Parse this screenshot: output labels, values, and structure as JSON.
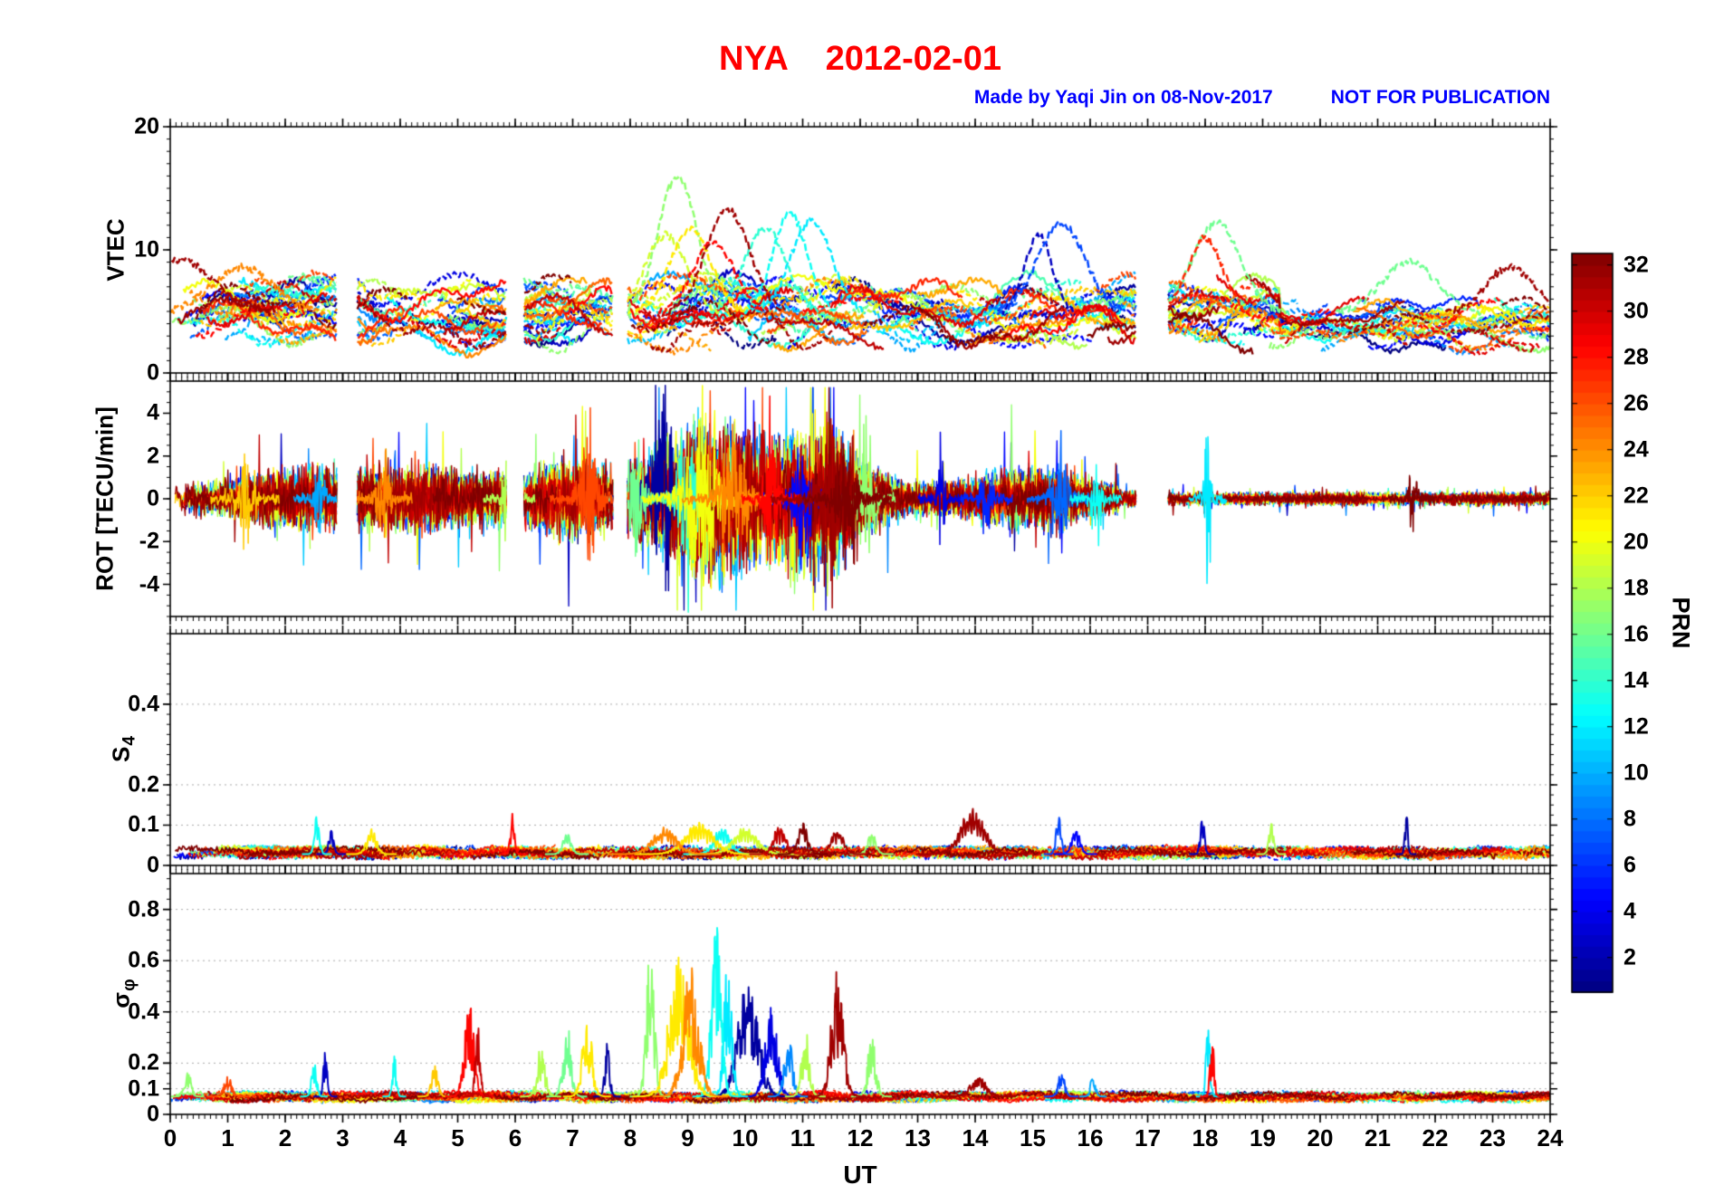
{
  "header": {
    "title": "NYA    2012-02-01",
    "title_color": "#ff0000",
    "credit": "Made by Yaqi Jin on 08-Nov-2017",
    "notice": "NOT FOR PUBLICATION",
    "credit_color": "#0000ff"
  },
  "chart_data": {
    "type": "line",
    "station": "NYA",
    "date": "2012-02-01",
    "axis_color": "#000000",
    "x": {
      "label": "UT",
      "lim": [
        0,
        24
      ],
      "major_ticks": [
        0,
        1,
        2,
        3,
        4,
        5,
        6,
        7,
        8,
        9,
        10,
        11,
        12,
        13,
        14,
        15,
        16,
        17,
        18,
        19,
        20,
        21,
        22,
        23,
        24
      ],
      "minor_step": 0.1
    },
    "colorbar": {
      "label": "PRN",
      "min": 1,
      "max": 32,
      "ticks": [
        2,
        4,
        6,
        8,
        10,
        12,
        14,
        16,
        18,
        20,
        22,
        24,
        26,
        28,
        30,
        32
      ],
      "colormap": "jet"
    },
    "data_gaps": [
      [
        2.9,
        3.25
      ],
      [
        5.85,
        6.15
      ],
      [
        7.7,
        7.95
      ],
      [
        16.8,
        17.35
      ]
    ],
    "panels": [
      {
        "key": "vtec",
        "ylabel": "VTEC",
        "ylabel_sub": "",
        "ylim": [
          0,
          20
        ],
        "yticks": [
          0,
          10,
          20
        ],
        "yminor": 1,
        "band": {
          "min": 2,
          "max": 9
        },
        "peaks": [
          {
            "t": 0.15,
            "prn": 31,
            "value": 9.2,
            "width": 0.5
          },
          {
            "t": 1.25,
            "prn": 24,
            "value": 8.6,
            "width": 0.45
          },
          {
            "t": 8.62,
            "prn": 19,
            "value": 11.2,
            "width": 0.3
          },
          {
            "t": 8.82,
            "prn": 17,
            "value": 16.0,
            "width": 0.28
          },
          {
            "t": 9.05,
            "prn": 21,
            "value": 11.6,
            "width": 0.3
          },
          {
            "t": 9.45,
            "prn": 28,
            "value": 10.6,
            "width": 0.3
          },
          {
            "t": 9.7,
            "prn": 31,
            "value": 13.2,
            "width": 0.32
          },
          {
            "t": 10.35,
            "prn": 14,
            "value": 11.8,
            "width": 0.3
          },
          {
            "t": 10.78,
            "prn": 13,
            "value": 12.9,
            "width": 0.25
          },
          {
            "t": 11.15,
            "prn": 12,
            "value": 12.4,
            "width": 0.3
          },
          {
            "t": 15.1,
            "prn": 3,
            "value": 11.2,
            "width": 0.2
          },
          {
            "t": 15.5,
            "prn": 7,
            "value": 12.1,
            "width": 0.35
          },
          {
            "t": 18.0,
            "prn": 27,
            "value": 11.0,
            "width": 0.25
          },
          {
            "t": 18.2,
            "prn": 16,
            "value": 12.2,
            "width": 0.35
          },
          {
            "t": 21.55,
            "prn": 16,
            "value": 9.0,
            "width": 0.4
          },
          {
            "t": 23.3,
            "prn": 31,
            "value": 8.6,
            "width": 0.35
          }
        ]
      },
      {
        "key": "rot",
        "ylabel": "ROT [TECU/min]",
        "ylabel_sub": "",
        "ylim": [
          -5.5,
          5.5
        ],
        "yticks": [
          4,
          2,
          0,
          -2,
          -4
        ],
        "yminor": 0.5,
        "quiet": 0.3,
        "activity": [
          {
            "t": 2.0,
            "amp": 0.3,
            "width": 1.5
          },
          {
            "t": 4.3,
            "amp": 0.5,
            "width": 2.0
          },
          {
            "t": 6.9,
            "amp": 0.6,
            "width": 0.8
          },
          {
            "t": 9.4,
            "amp": 1.7,
            "width": 1.3
          },
          {
            "t": 11.4,
            "amp": 1.4,
            "width": 0.9
          },
          {
            "t": 14.9,
            "amp": 0.5,
            "width": 1.2
          }
        ],
        "bursts": [
          {
            "t": 1.3,
            "prn": 22,
            "amp": 2.0,
            "width": 0.15
          },
          {
            "t": 2.6,
            "prn": 10,
            "amp": 1.9,
            "width": 0.1
          },
          {
            "t": 3.7,
            "prn": 24,
            "amp": 2.3,
            "width": 0.12
          },
          {
            "t": 5.9,
            "prn": 18,
            "amp": 4.4,
            "width": 0.1
          },
          {
            "t": 7.3,
            "prn": 26,
            "amp": 2.7,
            "width": 0.18
          },
          {
            "t": 8.1,
            "prn": 16,
            "amp": 3.1,
            "width": 0.15
          },
          {
            "t": 8.55,
            "prn": 2,
            "amp": 4.5,
            "width": 0.25
          },
          {
            "t": 9.0,
            "prn": 14,
            "amp": 3.5,
            "width": 0.2
          },
          {
            "t": 9.25,
            "prn": 20,
            "amp": 4.6,
            "width": 0.3
          },
          {
            "t": 9.8,
            "prn": 24,
            "amp": 3.5,
            "width": 0.25
          },
          {
            "t": 10.45,
            "prn": 28,
            "amp": 4.4,
            "width": 0.12
          },
          {
            "t": 11.0,
            "prn": 5,
            "amp": 3.4,
            "width": 0.2
          },
          {
            "t": 11.5,
            "prn": 31,
            "amp": 3.1,
            "width": 0.3
          },
          {
            "t": 11.75,
            "prn": 32,
            "amp": 2.6,
            "width": 0.2
          },
          {
            "t": 12.1,
            "prn": 17,
            "amp": 3.7,
            "width": 0.12
          },
          {
            "t": 13.4,
            "prn": 4,
            "amp": 1.8,
            "width": 0.08
          },
          {
            "t": 14.2,
            "prn": 6,
            "amp": 2.1,
            "width": 0.1
          },
          {
            "t": 15.5,
            "prn": 8,
            "amp": 2.3,
            "width": 0.15
          },
          {
            "t": 16.1,
            "prn": 13,
            "amp": 1.8,
            "width": 0.1
          },
          {
            "t": 18.05,
            "prn": 12,
            "amp": 4.7,
            "width": 0.06
          },
          {
            "t": 21.6,
            "prn": 32,
            "amp": 1.5,
            "width": 0.08
          }
        ]
      },
      {
        "key": "s4",
        "ylabel": "S",
        "ylabel_sub": "4",
        "ylim": [
          0,
          0.575
        ],
        "yticks": [
          0,
          0.1,
          0.2,
          0.4
        ],
        "yminor": 0.025,
        "baseline": 0.03,
        "events": [
          {
            "t": 2.55,
            "prn": 13,
            "amp": 0.09,
            "width": 0.06
          },
          {
            "t": 2.8,
            "prn": 3,
            "amp": 0.06,
            "width": 0.06
          },
          {
            "t": 3.5,
            "prn": 21,
            "amp": 0.055,
            "width": 0.12
          },
          {
            "t": 5.95,
            "prn": 28,
            "amp": 0.09,
            "width": 0.05
          },
          {
            "t": 6.9,
            "prn": 16,
            "amp": 0.05,
            "width": 0.1
          },
          {
            "t": 8.6,
            "prn": 24,
            "amp": 0.06,
            "width": 0.3
          },
          {
            "t": 9.2,
            "prn": 21,
            "amp": 0.07,
            "width": 0.35
          },
          {
            "t": 9.6,
            "prn": 13,
            "amp": 0.06,
            "width": 0.2
          },
          {
            "t": 10.0,
            "prn": 19,
            "amp": 0.06,
            "width": 0.3
          },
          {
            "t": 10.6,
            "prn": 30,
            "amp": 0.065,
            "width": 0.15
          },
          {
            "t": 11.0,
            "prn": 32,
            "amp": 0.07,
            "width": 0.12
          },
          {
            "t": 11.6,
            "prn": 31,
            "amp": 0.06,
            "width": 0.15
          },
          {
            "t": 12.2,
            "prn": 17,
            "amp": 0.05,
            "width": 0.1
          },
          {
            "t": 13.95,
            "prn": 31,
            "amp": 0.1,
            "width": 0.3
          },
          {
            "t": 15.45,
            "prn": 7,
            "amp": 0.09,
            "width": 0.06
          },
          {
            "t": 15.75,
            "prn": 5,
            "amp": 0.06,
            "width": 0.1
          },
          {
            "t": 17.95,
            "prn": 3,
            "amp": 0.09,
            "width": 0.05
          },
          {
            "t": 19.15,
            "prn": 18,
            "amp": 0.07,
            "width": 0.06
          },
          {
            "t": 21.5,
            "prn": 2,
            "amp": 0.1,
            "width": 0.035
          }
        ]
      },
      {
        "key": "sigma_phi",
        "ylabel": "σ",
        "ylabel_sub": "φ",
        "ylim": [
          0,
          0.94
        ],
        "yticks": [
          0,
          0.1,
          0.2,
          0.4,
          0.6,
          0.8
        ],
        "yminor": 0.04,
        "baseline": 0.07,
        "events": [
          {
            "t": 0.3,
            "prn": 17,
            "amp": 0.12,
            "width": 0.08
          },
          {
            "t": 1.0,
            "prn": 26,
            "amp": 0.08,
            "width": 0.1
          },
          {
            "t": 2.5,
            "prn": 13,
            "amp": 0.16,
            "width": 0.06
          },
          {
            "t": 2.7,
            "prn": 3,
            "amp": 0.2,
            "width": 0.05
          },
          {
            "t": 3.9,
            "prn": 13,
            "amp": 0.16,
            "width": 0.05
          },
          {
            "t": 4.6,
            "prn": 22,
            "amp": 0.12,
            "width": 0.08
          },
          {
            "t": 5.2,
            "prn": 28,
            "amp": 0.37,
            "width": 0.12
          },
          {
            "t": 5.35,
            "prn": 30,
            "amp": 0.28,
            "width": 0.06
          },
          {
            "t": 6.45,
            "prn": 18,
            "amp": 0.2,
            "width": 0.1
          },
          {
            "t": 6.9,
            "prn": 16,
            "amp": 0.3,
            "width": 0.1
          },
          {
            "t": 7.25,
            "prn": 21,
            "amp": 0.32,
            "width": 0.12
          },
          {
            "t": 7.6,
            "prn": 2,
            "amp": 0.22,
            "width": 0.06
          },
          {
            "t": 8.35,
            "prn": 17,
            "amp": 0.6,
            "width": 0.1
          },
          {
            "t": 8.85,
            "prn": 21,
            "amp": 0.55,
            "width": 0.25
          },
          {
            "t": 9.05,
            "prn": 24,
            "amp": 0.52,
            "width": 0.2
          },
          {
            "t": 9.5,
            "prn": 13,
            "amp": 0.71,
            "width": 0.12
          },
          {
            "t": 9.7,
            "prn": 12,
            "amp": 0.55,
            "width": 0.1
          },
          {
            "t": 10.05,
            "prn": 2,
            "amp": 0.47,
            "width": 0.25
          },
          {
            "t": 10.45,
            "prn": 4,
            "amp": 0.36,
            "width": 0.15
          },
          {
            "t": 10.75,
            "prn": 9,
            "amp": 0.26,
            "width": 0.1
          },
          {
            "t": 11.05,
            "prn": 18,
            "amp": 0.26,
            "width": 0.1
          },
          {
            "t": 11.6,
            "prn": 31,
            "amp": 0.5,
            "width": 0.15
          },
          {
            "t": 12.2,
            "prn": 17,
            "amp": 0.25,
            "width": 0.1
          },
          {
            "t": 14.05,
            "prn": 31,
            "amp": 0.08,
            "width": 0.2
          },
          {
            "t": 15.5,
            "prn": 7,
            "amp": 0.1,
            "width": 0.08
          },
          {
            "t": 16.05,
            "prn": 10,
            "amp": 0.1,
            "width": 0.06
          },
          {
            "t": 18.05,
            "prn": 12,
            "amp": 0.31,
            "width": 0.05
          },
          {
            "t": 18.12,
            "prn": 28,
            "amp": 0.24,
            "width": 0.05
          }
        ]
      }
    ]
  }
}
